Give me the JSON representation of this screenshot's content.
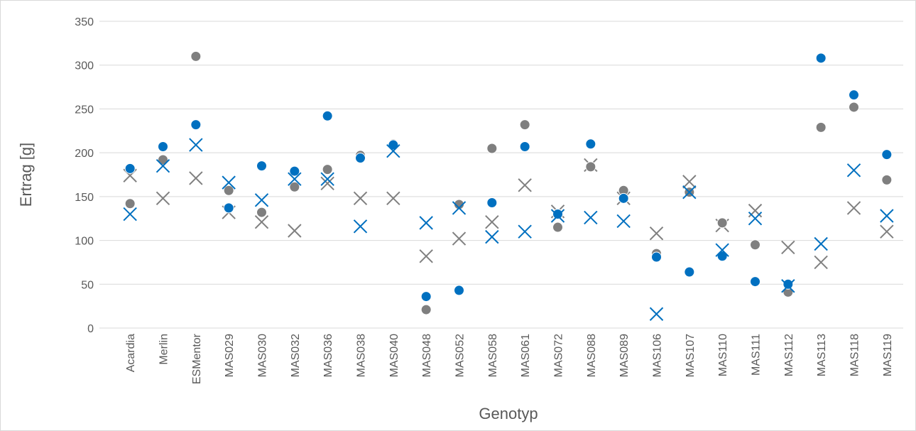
{
  "chart_data": {
    "type": "scatter",
    "x_label": "Genotyp",
    "y_label": "Ertrag [g]",
    "categories": [
      "Acardia",
      "Merlin",
      "ESMentor",
      "MAS029",
      "MAS030",
      "MAS032",
      "MAS036",
      "MAS038",
      "MAS040",
      "MAS048",
      "MAS052",
      "MAS058",
      "MAS061",
      "MAS072",
      "MAS088",
      "MAS089",
      "MAS106",
      "MAS107",
      "MAS110",
      "MAS111",
      "MAS112",
      "MAS113",
      "MAS118",
      "MAS119"
    ],
    "ylim": [
      0,
      350
    ],
    "yticks": [
      0,
      50,
      100,
      150,
      200,
      250,
      300,
      350
    ],
    "grid": true,
    "series": [
      {
        "marker": "x",
        "color": "#808080",
        "values": [
          174,
          148,
          171,
          132,
          121,
          111,
          165,
          148,
          148,
          82,
          102,
          121,
          163,
          133,
          186,
          148,
          108,
          167,
          117,
          134,
          92,
          75,
          137,
          110
        ]
      },
      {
        "marker": "circle",
        "color": "#7f7f7f",
        "values": [
          142,
          192,
          310,
          157,
          132,
          161,
          181,
          197,
          210,
          21,
          141,
          205,
          232,
          115,
          184,
          157,
          85,
          155,
          120,
          95,
          41,
          229,
          252,
          169
        ]
      },
      {
        "marker": "circle",
        "color": "#0070c0",
        "values": [
          182,
          207,
          232,
          137,
          185,
          179,
          242,
          194,
          209,
          36,
          43,
          143,
          207,
          130,
          210,
          148,
          81,
          64,
          82,
          53,
          50,
          308,
          266,
          198
        ]
      },
      {
        "marker": "x",
        "color": "#0070c0",
        "values": [
          130,
          185,
          209,
          166,
          146,
          170,
          170,
          116,
          202,
          120,
          137,
          104,
          110,
          128,
          126,
          122,
          16,
          155,
          89,
          125,
          48,
          96,
          180,
          128
        ]
      }
    ]
  }
}
